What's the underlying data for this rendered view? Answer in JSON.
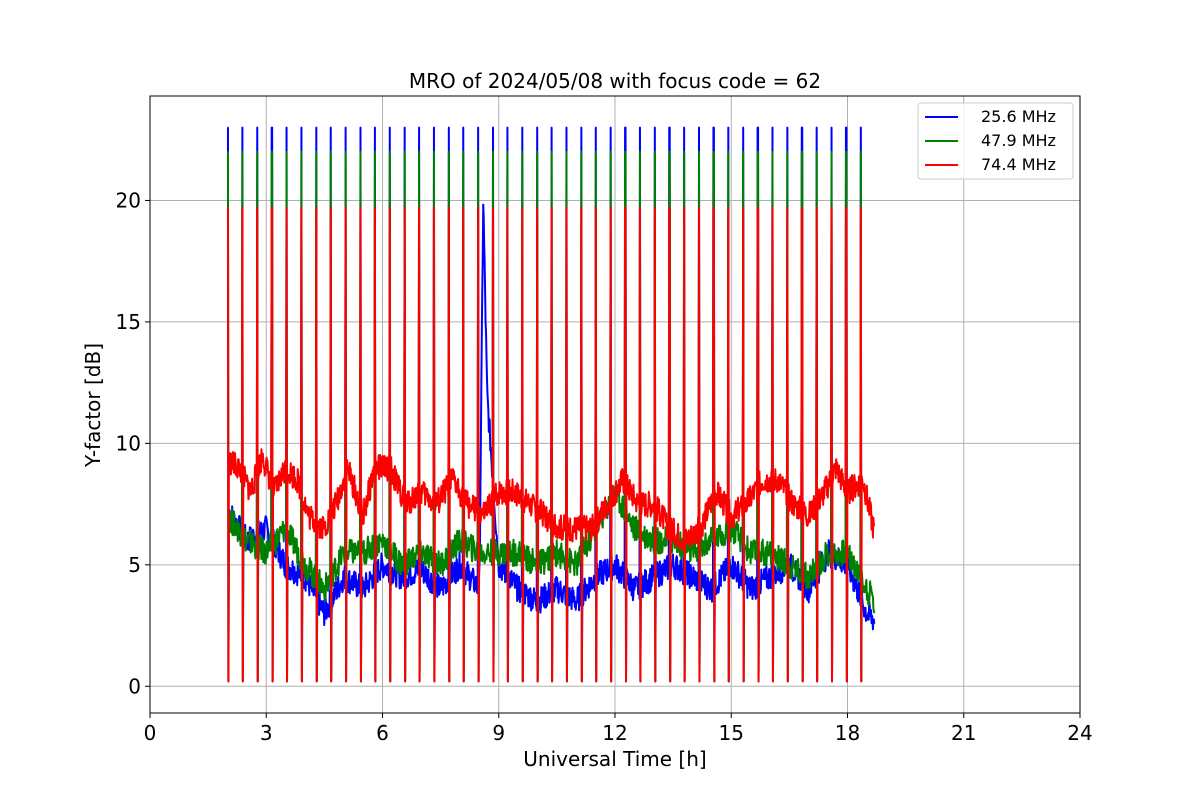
{
  "chart_data": {
    "type": "line",
    "title": "MRO of 2024/05/08 with focus code = 62",
    "xlabel": "Universal Time [h]",
    "ylabel": "Y-factor [dB]",
    "xlim": [
      0,
      24
    ],
    "ylim": [
      -1.1,
      24.3
    ],
    "xticks": [
      0,
      3,
      6,
      9,
      12,
      15,
      18,
      21,
      24
    ],
    "yticks": [
      0,
      5,
      10,
      15,
      20
    ],
    "grid": true,
    "legend_position": "top-right",
    "spike_period_h": 0.38,
    "data_range_h": [
      2.0,
      18.7
    ],
    "series": [
      {
        "name": "25.6 MHz",
        "color": "#0000ff",
        "spike_top": 23.0,
        "spike_bottom": 0.2,
        "baseline": [
          [
            2.0,
            7.3
          ],
          [
            2.5,
            6.0
          ],
          [
            3.0,
            6.5
          ],
          [
            3.5,
            5.0
          ],
          [
            4.0,
            4.5
          ],
          [
            4.5,
            3.0
          ],
          [
            5.0,
            4.5
          ],
          [
            5.5,
            4.0
          ],
          [
            6.0,
            5.0
          ],
          [
            6.5,
            4.5
          ],
          [
            7.0,
            4.8
          ],
          [
            7.5,
            4.0
          ],
          [
            8.0,
            5.0
          ],
          [
            8.5,
            4.0
          ],
          [
            8.6,
            20.0
          ],
          [
            8.7,
            12.0
          ],
          [
            9.0,
            5.0
          ],
          [
            9.5,
            4.0
          ],
          [
            10.0,
            3.5
          ],
          [
            10.5,
            4.0
          ],
          [
            11.0,
            3.5
          ],
          [
            11.5,
            4.5
          ],
          [
            12.0,
            5.0
          ],
          [
            12.5,
            4.0
          ],
          [
            13.0,
            4.5
          ],
          [
            13.5,
            5.0
          ],
          [
            14.0,
            4.5
          ],
          [
            14.5,
            4.0
          ],
          [
            15.0,
            5.0
          ],
          [
            15.5,
            4.0
          ],
          [
            16.0,
            4.5
          ],
          [
            16.5,
            5.0
          ],
          [
            17.0,
            4.0
          ],
          [
            17.5,
            5.5
          ],
          [
            18.0,
            5.0
          ],
          [
            18.5,
            3.0
          ],
          [
            18.7,
            2.7
          ]
        ]
      },
      {
        "name": "47.9 MHz",
        "color": "#008000",
        "spike_top": 22.0,
        "spike_bottom": 0.2,
        "baseline": [
          [
            2.0,
            7.0
          ],
          [
            2.5,
            6.0
          ],
          [
            3.0,
            5.5
          ],
          [
            3.5,
            6.5
          ],
          [
            4.0,
            5.0
          ],
          [
            4.5,
            4.0
          ],
          [
            5.0,
            5.5
          ],
          [
            5.5,
            5.5
          ],
          [
            6.0,
            6.0
          ],
          [
            6.5,
            5.0
          ],
          [
            7.0,
            5.5
          ],
          [
            7.5,
            5.0
          ],
          [
            8.0,
            6.0
          ],
          [
            8.5,
            5.5
          ],
          [
            9.0,
            5.5
          ],
          [
            9.5,
            5.5
          ],
          [
            10.0,
            5.0
          ],
          [
            10.5,
            5.5
          ],
          [
            11.0,
            5.0
          ],
          [
            11.5,
            6.5
          ],
          [
            12.0,
            8.0
          ],
          [
            12.5,
            6.5
          ],
          [
            13.0,
            6.0
          ],
          [
            13.5,
            6.0
          ],
          [
            14.0,
            5.5
          ],
          [
            14.5,
            6.0
          ],
          [
            15.0,
            6.5
          ],
          [
            15.5,
            5.5
          ],
          [
            16.0,
            5.5
          ],
          [
            16.5,
            5.0
          ],
          [
            17.0,
            4.5
          ],
          [
            17.5,
            5.5
          ],
          [
            18.0,
            5.5
          ],
          [
            18.5,
            4.0
          ],
          [
            18.7,
            3.5
          ]
        ]
      },
      {
        "name": "74.4 MHz",
        "color": "#ff0000",
        "spike_top": 19.7,
        "spike_bottom": 0.2,
        "baseline": [
          [
            2.0,
            9.3
          ],
          [
            2.3,
            9.0
          ],
          [
            2.6,
            8.0
          ],
          [
            2.9,
            9.5
          ],
          [
            3.2,
            8.0
          ],
          [
            3.5,
            9.0
          ],
          [
            3.8,
            8.5
          ],
          [
            4.1,
            7.0
          ],
          [
            4.5,
            6.5
          ],
          [
            4.8,
            7.5
          ],
          [
            5.1,
            9.0
          ],
          [
            5.5,
            7.0
          ],
          [
            5.8,
            9.0
          ],
          [
            6.2,
            9.0
          ],
          [
            6.6,
            7.5
          ],
          [
            7.0,
            8.0
          ],
          [
            7.4,
            7.5
          ],
          [
            7.8,
            8.5
          ],
          [
            8.2,
            7.5
          ],
          [
            8.6,
            7.0
          ],
          [
            9.0,
            8.0
          ],
          [
            9.4,
            8.0
          ],
          [
            9.8,
            7.5
          ],
          [
            10.2,
            7.0
          ],
          [
            10.6,
            6.5
          ],
          [
            11.0,
            6.5
          ],
          [
            11.4,
            6.5
          ],
          [
            11.8,
            7.5
          ],
          [
            12.2,
            8.5
          ],
          [
            12.6,
            7.5
          ],
          [
            13.0,
            7.5
          ],
          [
            13.4,
            6.5
          ],
          [
            13.8,
            6.0
          ],
          [
            14.2,
            6.5
          ],
          [
            14.6,
            8.0
          ],
          [
            15.0,
            7.0
          ],
          [
            15.4,
            7.5
          ],
          [
            15.8,
            8.5
          ],
          [
            16.2,
            8.5
          ],
          [
            16.6,
            7.5
          ],
          [
            17.0,
            7.0
          ],
          [
            17.4,
            8.0
          ],
          [
            17.7,
            9.0
          ],
          [
            18.0,
            8.0
          ],
          [
            18.4,
            8.5
          ],
          [
            18.7,
            6.3
          ]
        ]
      }
    ]
  }
}
